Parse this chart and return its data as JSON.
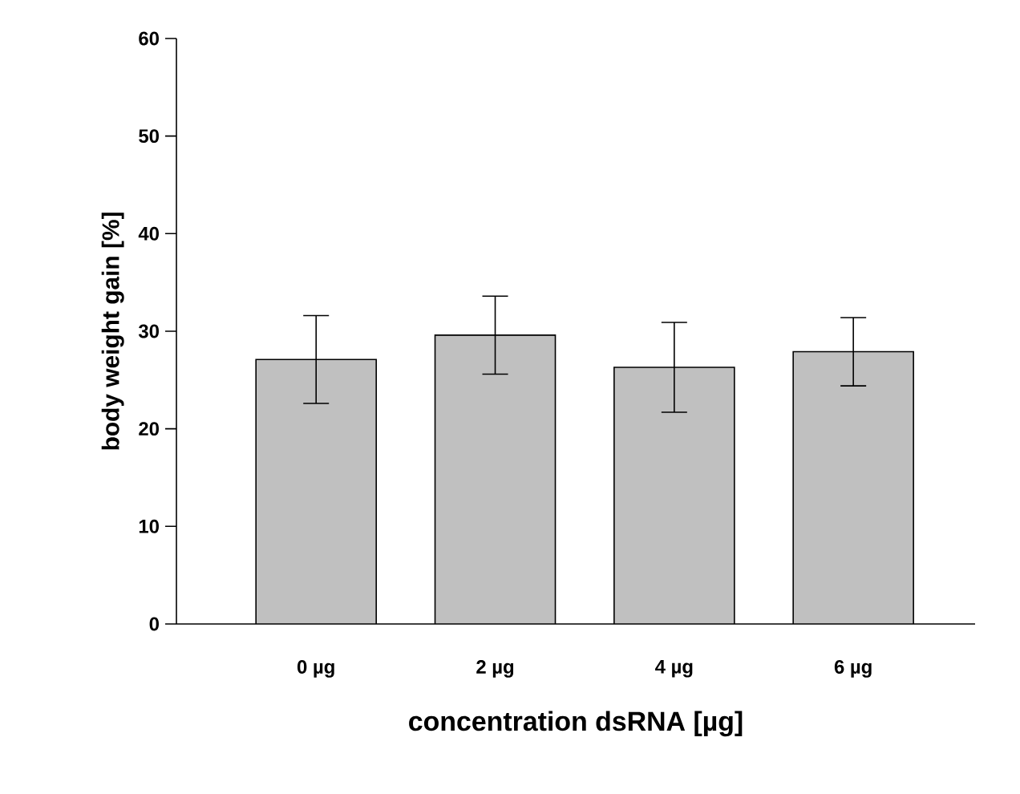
{
  "chart_data": {
    "type": "bar",
    "xlabel": "concentration dsRNA [µg]",
    "ylabel": "body weight gain [%]",
    "categories": [
      "0 µg",
      "2 µg",
      "4 µg",
      "6 µg"
    ],
    "values": [
      27.1,
      29.6,
      26.3,
      27.9
    ],
    "errors": [
      4.5,
      4.0,
      4.6,
      3.5
    ],
    "color": "#c0c0c0",
    "ylim": [
      0,
      60
    ],
    "yticks": [
      0,
      10,
      20,
      30,
      40,
      50,
      60
    ],
    "grid": false
  }
}
